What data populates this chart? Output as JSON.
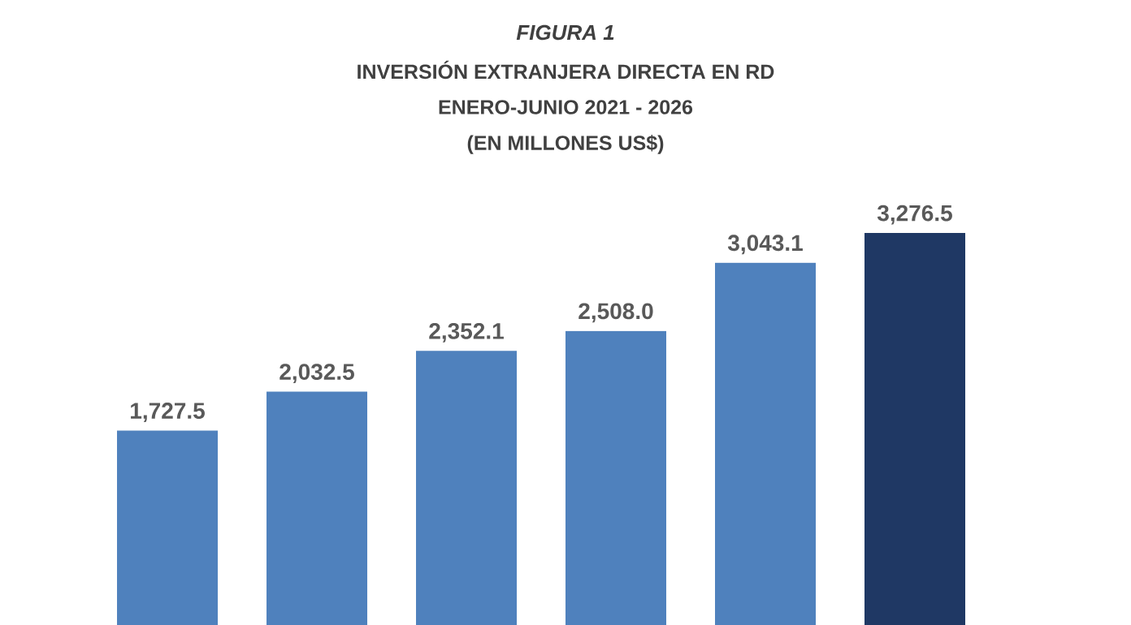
{
  "chart_data": {
    "type": "bar",
    "title": "FIGURA 1",
    "subtitle": "INVERSIÓN EXTRANJERA DIRECTA EN RD",
    "annotations": [
      "ENERO-JUNIO 2021 - 2026",
      "(EN MILLONES US$)"
    ],
    "categories": [
      null,
      null,
      null,
      null,
      null,
      null
    ],
    "values": [
      1727.5,
      2032.5,
      2352.1,
      2508.0,
      3043.1,
      3276.5
    ],
    "value_labels": [
      "1,727.5",
      "2,032.5",
      "2,352.1",
      "2,508.0",
      "3,043.1",
      "3,276.5"
    ],
    "colors": [
      "#4f81bd",
      "#4f81bd",
      "#4f81bd",
      "#4f81bd",
      "#4f81bd",
      "#1f3864"
    ]
  }
}
